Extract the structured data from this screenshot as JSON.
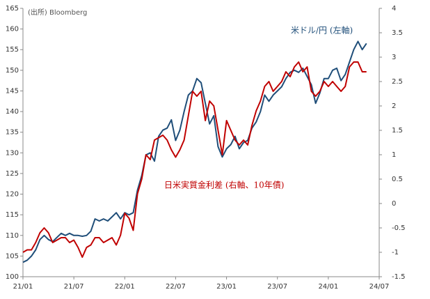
{
  "chart_data": {
    "type": "line",
    "source": "(出所) Bloomberg",
    "x": [
      0,
      0.5,
      1,
      1.5,
      2,
      2.5,
      3,
      3.5,
      4,
      4.5,
      5,
      5.5,
      6,
      6.5,
      7,
      7.5,
      8,
      8.5,
      9,
      9.5,
      10,
      10.5,
      11,
      11.5,
      12,
      12.5,
      13,
      13.5,
      14,
      14.5,
      15,
      15.5,
      16,
      16.5,
      17,
      17.5,
      18,
      18.5,
      19,
      19.5,
      20,
      20.5,
      21,
      21.5,
      22,
      22.5,
      23,
      23.5,
      24,
      24.5,
      25,
      25.5,
      26,
      26.5,
      27,
      27.5,
      28,
      28.5,
      29,
      29.5,
      30,
      30.5,
      31,
      31.5,
      32,
      32.5,
      33,
      33.5,
      34,
      34.5,
      35,
      35.5,
      36,
      36.5,
      37,
      37.5,
      38,
      38.5,
      39,
      39.5,
      40,
      40.5
    ],
    "xlim": [
      0,
      42
    ],
    "xticks": [
      {
        "value": 0,
        "label": "21/01"
      },
      {
        "value": 6,
        "label": "21/07"
      },
      {
        "value": 12,
        "label": "22/01"
      },
      {
        "value": 18,
        "label": "22/07"
      },
      {
        "value": 24,
        "label": "23/01"
      },
      {
        "value": 30,
        "label": "23/07"
      },
      {
        "value": 36,
        "label": "24/01"
      },
      {
        "value": 42,
        "label": "24/07"
      }
    ],
    "ylim": [
      100,
      165
    ],
    "yticks": [
      100,
      105,
      110,
      115,
      120,
      125,
      130,
      135,
      140,
      145,
      150,
      155,
      160,
      165
    ],
    "y2lim": [
      -1.5,
      4
    ],
    "y2ticks": [
      -1.5,
      -1,
      -0.5,
      0,
      0.5,
      1,
      1.5,
      2,
      2.5,
      3,
      3.5,
      4
    ],
    "series": [
      {
        "name": "米ドル/円 (左軸)",
        "color": "#1f4e79",
        "values": [
          103.5,
          104,
          105,
          106.5,
          109,
          110,
          109,
          108.5,
          109.5,
          110.5,
          110,
          110.5,
          110,
          110,
          109.8,
          110,
          111,
          114,
          113.5,
          114,
          113.5,
          114.5,
          115.5,
          114,
          115.5,
          115,
          115.5,
          121,
          124.5,
          129.5,
          130,
          128,
          134,
          135.5,
          136,
          138,
          133,
          135.5,
          140,
          144,
          145,
          148,
          147,
          142,
          137,
          139,
          131.5,
          129,
          131,
          132,
          134,
          131,
          132.5,
          133,
          136,
          137.5,
          140,
          144,
          142.5,
          144,
          145,
          146,
          148,
          149.5,
          150,
          149.5,
          150.5,
          148.5,
          146.5,
          142,
          144.5,
          148,
          148,
          150,
          150.5,
          147.5,
          149,
          152,
          155,
          157,
          155,
          156.5
        ]
      },
      {
        "name": "日米実質金利差 (右軸、10年債)",
        "color": "#c00000",
        "axis": "y2",
        "values": [
          -1.0,
          -0.95,
          -0.95,
          -0.8,
          -0.6,
          -0.5,
          -0.6,
          -0.8,
          -0.75,
          -0.7,
          -0.7,
          -0.8,
          -0.75,
          -0.9,
          -1.1,
          -0.9,
          -0.85,
          -0.7,
          -0.7,
          -0.8,
          -0.75,
          -0.7,
          -0.85,
          -0.65,
          -0.2,
          -0.3,
          -0.55,
          0.2,
          0.5,
          1.0,
          0.9,
          1.3,
          1.35,
          1.4,
          1.3,
          1.1,
          0.95,
          1.1,
          1.3,
          1.8,
          2.3,
          2.2,
          2.3,
          1.7,
          2.1,
          2.0,
          1.5,
          1.0,
          1.7,
          1.5,
          1.3,
          1.2,
          1.3,
          1.2,
          1.6,
          1.9,
          2.1,
          2.4,
          2.5,
          2.3,
          2.4,
          2.5,
          2.7,
          2.6,
          2.8,
          2.9,
          2.7,
          2.8,
          2.3,
          2.2,
          2.3,
          2.5,
          2.4,
          2.5,
          2.4,
          2.3,
          2.4,
          2.8,
          2.9,
          2.9,
          2.7,
          2.7
        ]
      }
    ]
  }
}
